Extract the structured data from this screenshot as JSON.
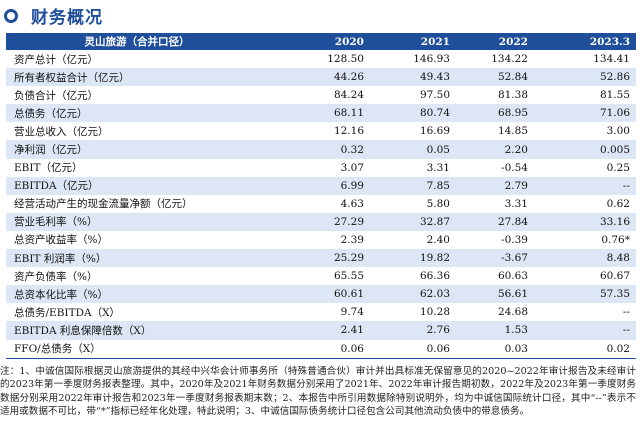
{
  "section": {
    "title": "财务概况"
  },
  "table": {
    "headers": [
      "灵山旅游（合并口径）",
      "2020",
      "2021",
      "2022",
      "2023.3"
    ],
    "rows": [
      [
        "资产总计（亿元）",
        "128.50",
        "146.93",
        "134.22",
        "134.41"
      ],
      [
        "所有者权益合计（亿元）",
        "44.26",
        "49.43",
        "52.84",
        "52.86"
      ],
      [
        "负债合计（亿元）",
        "84.24",
        "97.50",
        "81.38",
        "81.55"
      ],
      [
        "总债务（亿元）",
        "68.11",
        "80.74",
        "68.95",
        "71.06"
      ],
      [
        "营业总收入（亿元）",
        "12.16",
        "16.69",
        "14.85",
        "3.00"
      ],
      [
        "净利润（亿元）",
        "0.32",
        "0.05",
        "2.20",
        "0.005"
      ],
      [
        "EBIT（亿元）",
        "3.07",
        "3.31",
        "-0.54",
        "0.25"
      ],
      [
        "EBITDA（亿元）",
        "6.99",
        "7.85",
        "2.79",
        "--"
      ],
      [
        "经营活动产生的现金流量净额（亿元）",
        "4.63",
        "5.80",
        "3.31",
        "0.62"
      ],
      [
        "营业毛利率（%）",
        "27.29",
        "32.87",
        "27.84",
        "33.16"
      ],
      [
        "总资产收益率（%）",
        "2.39",
        "2.40",
        "-0.39",
        "0.76*"
      ],
      [
        "EBIT 利润率（%）",
        "25.29",
        "19.82",
        "-3.67",
        "8.48"
      ],
      [
        "资产负债率（%）",
        "65.55",
        "66.36",
        "60.63",
        "60.67"
      ],
      [
        "总资本化比率（%）",
        "60.61",
        "62.03",
        "56.61",
        "57.35"
      ],
      [
        "总债务/EBITDA（X）",
        "9.74",
        "10.28",
        "24.68",
        "--"
      ],
      [
        "EBITDA 利息保障倍数（X）",
        "2.41",
        "2.76",
        "1.53",
        "--"
      ],
      [
        "FFO/总债务（X）",
        "0.06",
        "0.06",
        "0.03",
        "0.02"
      ]
    ]
  },
  "note": "注：1、中诚信国际根据灵山旅游提供的其经中兴华会计师事务所（特殊普通合伙）审计并出具标准无保留意见的2020~2022年审计报告及未经审计的2023年第一季度财务报表整理。其中，2020年及2021年财务数据分别采用了2021年、2022年审计报告期初数，2022年及2023年第一季度财务数据分别采用2022年审计报告和2023年一季度财务报表期末数；2、本报告中所引用数据除特别说明外，均为中诚信国际统计口径，其中“--”表示不适用或数据不可比，带“*”指标已经年化处理，特此说明；3、中诚信国际债务统计口径包含公司其他流动负债中的带息债务。"
}
